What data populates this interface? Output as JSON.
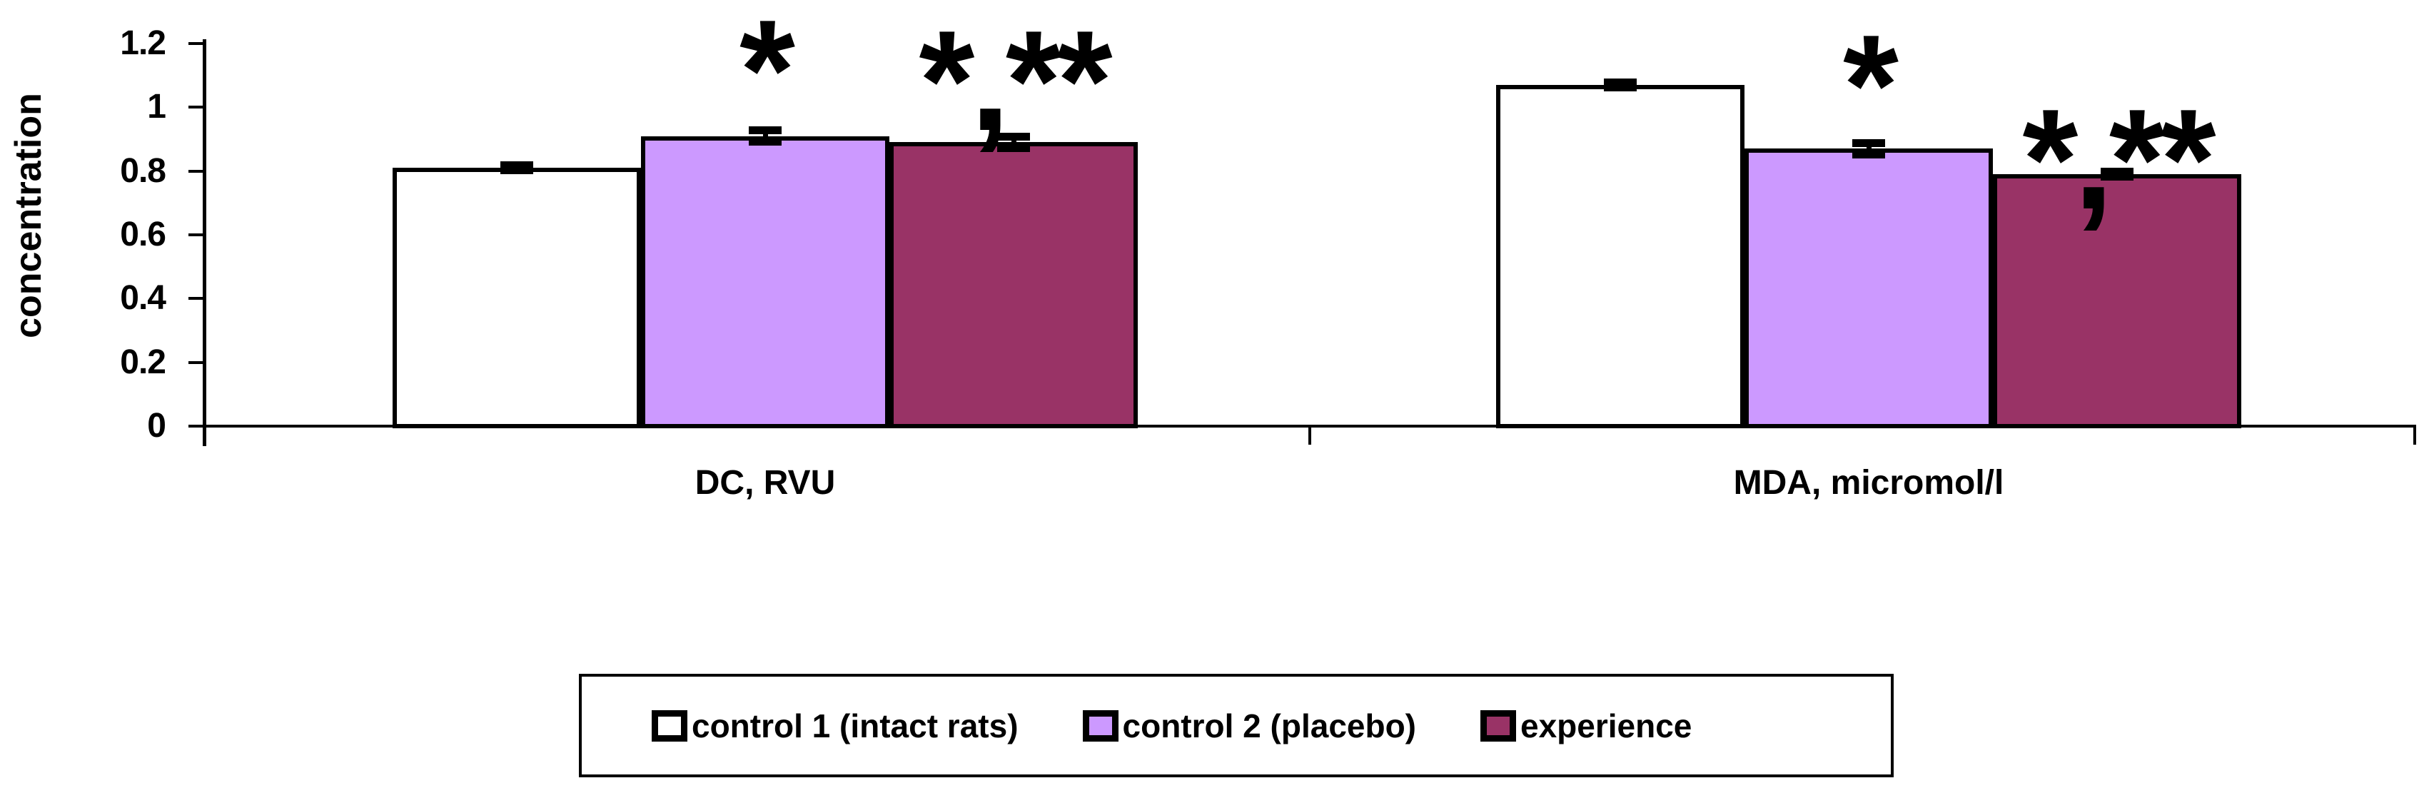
{
  "chart_data": {
    "type": "bar",
    "title": "",
    "ylabel": "concentration",
    "xlabel": "",
    "ylim": [
      0,
      1.2
    ],
    "yticks": [
      0,
      0.2,
      0.4,
      0.6,
      0.8,
      1,
      1.2
    ],
    "ytick_labels": [
      "0",
      "0.2",
      "0.4",
      "0.6",
      "0.8",
      "1",
      "1.2"
    ],
    "categories": [
      "DC, RVU",
      "MDA, micromol/l"
    ],
    "series": [
      {
        "name": "control 1 (intact rats)",
        "color": "#FFFFFF",
        "values": [
          0.81,
          1.07
        ],
        "errors": [
          0.02,
          0.02
        ],
        "annotations": [
          "",
          ""
        ]
      },
      {
        "name": "control 2 (placebo)",
        "color": "#CC99FF",
        "values": [
          0.91,
          0.87
        ],
        "errors": [
          0.03,
          0.03
        ],
        "annotations": [
          "*",
          "*"
        ]
      },
      {
        "name": "experience",
        "color": "#993366",
        "values": [
          0.89,
          0.79
        ],
        "errors": [
          0.03,
          0.02
        ],
        "annotations": [
          "*,**",
          "*,**"
        ]
      }
    ],
    "error_bars": true,
    "grid": false,
    "legend_position": "bottom",
    "axis_color": "#000000",
    "background_color": "#FFFFFF"
  }
}
